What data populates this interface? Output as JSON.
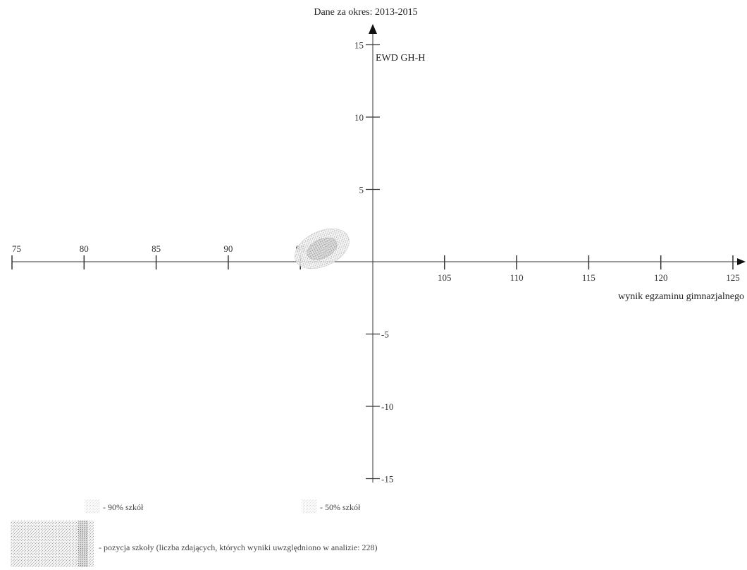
{
  "chart_data": {
    "type": "scatter",
    "title": "Dane za okres: 2013-2015",
    "xlabel": "wynik egzaminu gimnazjalnego",
    "ylabel": "EWD GH-H",
    "xlim": [
      75,
      125
    ],
    "ylim": [
      -15,
      15
    ],
    "x_ticks": [
      75,
      80,
      85,
      90,
      95,
      100,
      105,
      110,
      115,
      120,
      125
    ],
    "x_tick_labels": [
      "75",
      "80",
      "85",
      "90",
      "95",
      "",
      "105",
      "110",
      "115",
      "120",
      "125"
    ],
    "y_ticks": [
      -15,
      -10,
      -5,
      5,
      10,
      15
    ],
    "y_tick_labels": [
      "-15",
      "-10",
      "-5",
      "5",
      "10",
      "15"
    ],
    "grid": false,
    "series": [
      {
        "shape": "ellipse",
        "center": [
          96.5,
          0.9
        ],
        "axes": [
          2.0,
          1.2
        ],
        "rotation_deg": 25,
        "confidence": "90%",
        "color": "#c9c9c9"
      },
      {
        "shape": "ellipse",
        "center": [
          96.5,
          0.9
        ],
        "axes": [
          1.1,
          0.65
        ],
        "rotation_deg": 25,
        "confidence": "50%",
        "color": "#b0b0b0"
      }
    ],
    "legend": {
      "placement": "bottom",
      "items": [
        {
          "label": "- 90% szkół",
          "color": "#d4d4d4"
        },
        {
          "label": "- 50% szkół",
          "color": "#bdbdbd"
        },
        {
          "label": "- pozycja szkoły (liczba zdających, których wyniki uwzględniono w analizie: 228)",
          "color": "#a8a8a8"
        }
      ]
    }
  }
}
